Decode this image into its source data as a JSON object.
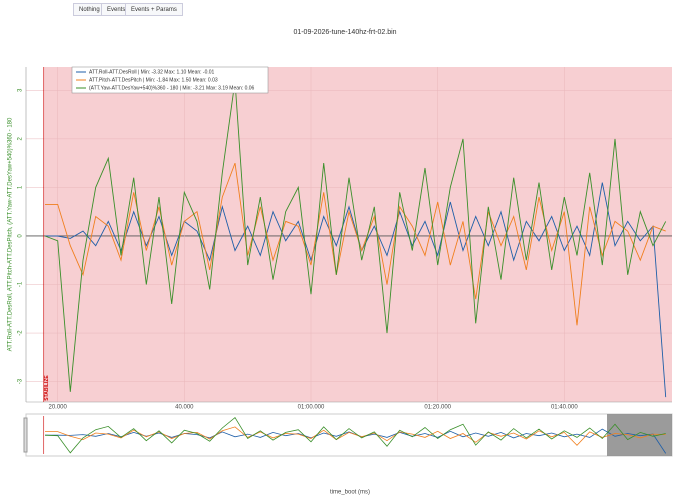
{
  "buttons": [
    "Nothing",
    "Events",
    "Events + Params"
  ],
  "chart_data": {
    "type": "line",
    "title": "01-09-2026-tune-140hz-frt-02.bin",
    "xlabel": "time_boot (ms)",
    "ylabel": "ATT.Roll-ATT.DesRoll, ATT.Pitch-ATT.DesPitch, (ATT.Yaw-ATT.DesYaw+540)%360 - 180",
    "mode_event": {
      "label": "STABILIZE",
      "x": 17.8
    },
    "xlim": [
      15,
      117
    ],
    "xticks": [
      {
        "value": 20,
        "label": "20.000"
      },
      {
        "value": 40,
        "label": "40.000"
      },
      {
        "value": 60,
        "label": "01:00.000"
      },
      {
        "value": 80,
        "label": "01:20.000"
      },
      {
        "value": 100,
        "label": "01:40.000"
      }
    ],
    "ylim": [
      -3.42,
      3.48
    ],
    "yticks": [
      -3,
      -2,
      -1,
      0,
      1,
      2,
      3
    ],
    "grid": true,
    "legend": "top-left",
    "x": [
      18,
      20,
      22,
      24,
      26,
      28,
      30,
      32,
      34,
      36,
      38,
      40,
      42,
      44,
      46,
      48,
      50,
      52,
      54,
      56,
      58,
      60,
      62,
      64,
      66,
      68,
      70,
      72,
      74,
      76,
      78,
      80,
      82,
      84,
      86,
      88,
      90,
      92,
      94,
      96,
      98,
      100,
      102,
      104,
      106,
      108,
      110,
      112,
      114,
      116
    ],
    "series": [
      {
        "name": "ATT.Roll-ATT.DesRoll | Min: -3.32   Max: 1.10   Mean: -0.01",
        "color": "#1f5fa8",
        "values": [
          0,
          0,
          -0.05,
          0.1,
          -0.2,
          0.3,
          -0.3,
          0.5,
          -0.2,
          0.4,
          -0.4,
          0.3,
          0.1,
          -0.5,
          0.6,
          -0.3,
          0.2,
          -0.4,
          0.5,
          -0.1,
          0.3,
          -0.5,
          0.4,
          -0.2,
          0.6,
          -0.3,
          0.2,
          -0.4,
          0.5,
          -0.2,
          0.3,
          -0.4,
          0.7,
          -0.3,
          0.4,
          -0.2,
          0.5,
          -0.5,
          0.3,
          -0.1,
          0.4,
          -0.3,
          0.2,
          -0.4,
          1.1,
          -0.2,
          0.3,
          -0.1,
          0.2,
          -3.32
        ]
      },
      {
        "name": "ATT.Pitch-ATT.DesPitch | Min: -1.84   Max: 1.50   Mean: 0.03",
        "color": "#f07f1e",
        "values": [
          0.65,
          0.65,
          -0.2,
          -0.8,
          0.4,
          0.2,
          -0.5,
          0.9,
          -0.3,
          0.6,
          -0.6,
          0.3,
          0.5,
          -0.7,
          0.8,
          1.5,
          -0.4,
          0.6,
          -0.5,
          0.3,
          0.2,
          -0.6,
          0.9,
          -0.8,
          0.5,
          -0.3,
          0.4,
          -1.0,
          0.6,
          0.2,
          -0.4,
          0.7,
          -0.6,
          0.3,
          -1.3,
          0.5,
          -0.2,
          0.4,
          -0.7,
          0.8,
          -0.3,
          0.5,
          -1.84,
          0.6,
          -0.4,
          0.3,
          0.1,
          -0.5,
          0.2,
          0.1
        ]
      },
      {
        "name": "(ATT.Yaw-ATT.DesYaw+540)%360 - 180 | Min: -3.21   Max: 3.19   Mean: 0.06",
        "color": "#3a8f2a",
        "values": [
          0,
          -0.1,
          -3.21,
          -0.5,
          1.0,
          1.6,
          -0.4,
          1.2,
          -1.0,
          0.8,
          -1.4,
          0.9,
          0.3,
          -1.1,
          1.3,
          3.19,
          -0.6,
          0.8,
          -0.9,
          0.5,
          1.0,
          -1.2,
          1.5,
          -0.8,
          1.2,
          -0.5,
          0.6,
          -2.0,
          0.9,
          -0.3,
          1.4,
          -0.6,
          1.0,
          2.0,
          -1.8,
          0.6,
          -0.9,
          1.2,
          -0.5,
          1.1,
          -0.7,
          0.8,
          -0.4,
          1.3,
          -0.6,
          2.0,
          -0.8,
          0.5,
          -0.2,
          0.3
        ]
      }
    ]
  }
}
